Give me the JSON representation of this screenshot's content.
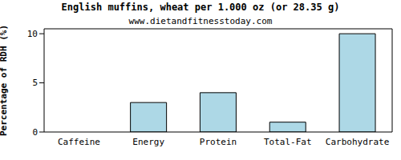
{
  "chart_data": {
    "type": "bar",
    "title": "English muffins, wheat per 1.000 oz (or 28.35 g)",
    "subtitle": "www.dietandfitnesstoday.com",
    "y_label": "Percentage of RDH (%)",
    "categories": [
      "Caffeine",
      "Energy",
      "Protein",
      "Total-Fat",
      "Carbohydrate"
    ],
    "values": [
      0,
      3,
      4,
      1,
      10
    ],
    "color": "#add8e6",
    "ylim": [
      0,
      10.5
    ],
    "yticks": [
      0,
      5,
      10
    ],
    "grid": false
  }
}
